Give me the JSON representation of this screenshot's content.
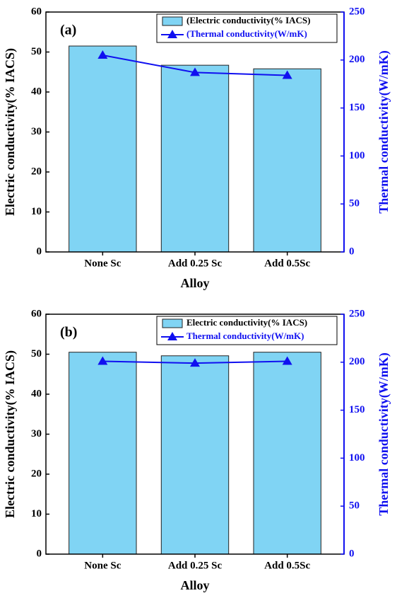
{
  "chart_data": [
    {
      "type": "bar",
      "annotation": "(a)",
      "xlabel": "Alloy",
      "ylabel": "Electric conductivity(% IACS)",
      "y2label": "Thermal conductivity(W/mK)",
      "categories": [
        "None Sc",
        "Add 0.25 Sc",
        "Add 0.5Sc"
      ],
      "series": [
        {
          "name": "(Electric conductivity(% IACS)",
          "type": "bar",
          "color": "#80d4f4",
          "values": [
            51.5,
            46.7,
            45.8
          ]
        },
        {
          "name": "(Thermal conductivity(W/mK)",
          "type": "line",
          "axis": "y2",
          "color": "#1010f0",
          "values": [
            205,
            187,
            184
          ]
        }
      ],
      "ylim": [
        0,
        60
      ],
      "yticks": [
        0,
        10,
        20,
        30,
        40,
        50,
        60
      ],
      "y2lim": [
        0,
        250
      ],
      "y2ticks": [
        0,
        50,
        100,
        150,
        200,
        250
      ],
      "legend": "upper right"
    },
    {
      "type": "bar",
      "annotation": "(b)",
      "xlabel": "Alloy",
      "ylabel": "Electric conductivity(% IACS)",
      "y2label": "Thermal conductivity(W/mK)",
      "categories": [
        "None Sc",
        "Add 0.25 Sc",
        "Add 0.5Sc"
      ],
      "series": [
        {
          "name": "Electric conductivity(% IACS)",
          "type": "bar",
          "color": "#80d4f4",
          "values": [
            50.5,
            49.6,
            50.5
          ]
        },
        {
          "name": "Thermal conductivity(W/mK)",
          "type": "line",
          "axis": "y2",
          "color": "#1010f0",
          "values": [
            201,
            199,
            201
          ]
        }
      ],
      "ylim": [
        0,
        60
      ],
      "yticks": [
        0,
        10,
        20,
        30,
        40,
        50,
        60
      ],
      "y2lim": [
        0,
        250
      ],
      "y2ticks": [
        0,
        50,
        100,
        150,
        200,
        250
      ],
      "legend": "upper right"
    }
  ]
}
